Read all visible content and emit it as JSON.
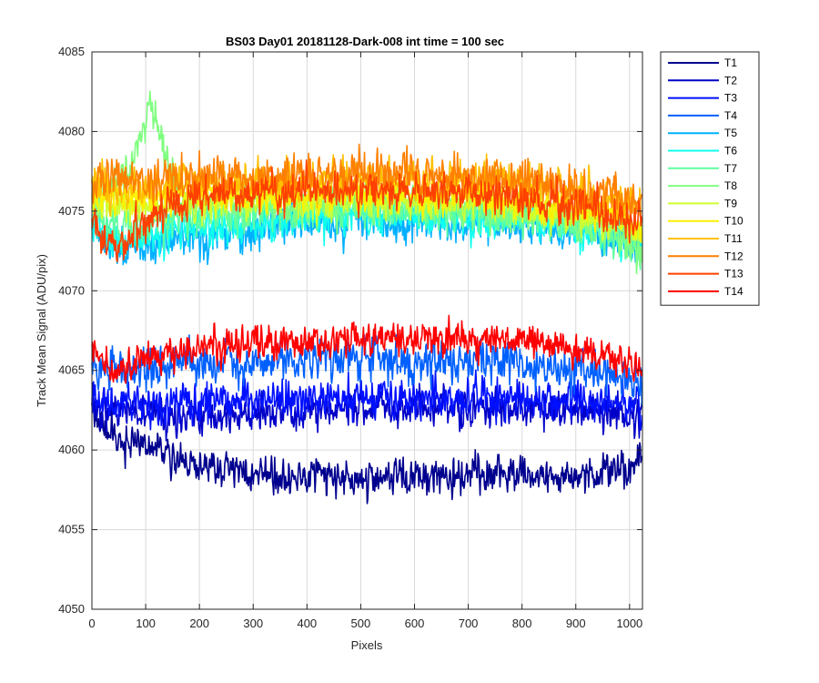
{
  "chart_data": {
    "type": "line",
    "title": "BS03 Day01 20181128-Dark-008 int time = 100 sec",
    "xlabel": "Pixels",
    "ylabel": "Track Mean Signal (ADU/pix)",
    "xlim": [
      0,
      1024
    ],
    "ylim": [
      4050,
      4085
    ],
    "xticks": [
      0,
      100,
      200,
      300,
      400,
      500,
      600,
      700,
      800,
      900,
      1000
    ],
    "yticks": [
      4050,
      4055,
      4060,
      4065,
      4070,
      4075,
      4080,
      4085
    ],
    "grid": true,
    "legend_position": "outside-top-right",
    "x_count": 1024,
    "series": [
      {
        "name": "T1",
        "color": "#00008F",
        "profile": {
          "x": [
            0,
            20,
            60,
            120,
            200,
            300,
            400,
            500,
            600,
            700,
            800,
            900,
            1000,
            1024
          ],
          "y": [
            4062.5,
            4061.5,
            4060.5,
            4060.0,
            4059.0,
            4058.5,
            4058.3,
            4058.2,
            4058.3,
            4058.5,
            4058.4,
            4058.2,
            4058.8,
            4059.5
          ]
        },
        "noise": 1.1
      },
      {
        "name": "T2",
        "color": "#0000C8",
        "profile": {
          "x": [
            0,
            50,
            200,
            500,
            800,
            1000,
            1024
          ],
          "y": [
            4062.5,
            4062.3,
            4062.2,
            4062.6,
            4062.7,
            4062.3,
            4062.0
          ]
        },
        "noise": 1.1
      },
      {
        "name": "T3",
        "color": "#0010FF",
        "profile": {
          "x": [
            0,
            200,
            500,
            800,
            1000,
            1024
          ],
          "y": [
            4063.0,
            4063.0,
            4063.3,
            4063.3,
            4062.8,
            4062.5
          ]
        },
        "noise": 1.2
      },
      {
        "name": "T4",
        "color": "#0060FF",
        "profile": {
          "x": [
            0,
            200,
            500,
            800,
            1000,
            1024
          ],
          "y": [
            4065.0,
            4065.3,
            4065.8,
            4065.5,
            4064.5,
            4064.0
          ]
        },
        "noise": 1.3
      },
      {
        "name": "T5",
        "color": "#00B0FF",
        "profile": {
          "x": [
            0,
            50,
            200,
            500,
            800,
            950,
            1024
          ],
          "y": [
            4074.0,
            4072.5,
            4073.5,
            4074.5,
            4074.0,
            4073.5,
            4073.0
          ]
        },
        "noise": 1.2
      },
      {
        "name": "T6",
        "color": "#10FFEF",
        "profile": {
          "x": [
            0,
            50,
            200,
            500,
            800,
            950,
            1024
          ],
          "y": [
            4074.5,
            4073.0,
            4074.0,
            4075.0,
            4074.5,
            4073.5,
            4073.0
          ]
        },
        "noise": 1.2
      },
      {
        "name": "T7",
        "color": "#60FFA0",
        "profile": {
          "x": [
            0,
            60,
            200,
            500,
            800,
            950,
            1024
          ],
          "y": [
            4075.0,
            4074.0,
            4074.8,
            4075.2,
            4074.8,
            4073.5,
            4072.5
          ]
        },
        "noise": 1.2
      },
      {
        "name": "T8",
        "color": "#80FF80",
        "profile": {
          "x": [
            0,
            60,
            90,
            110,
            130,
            160,
            200,
            500,
            800,
            950,
            1024
          ],
          "y": [
            4075.5,
            4077.0,
            4079.5,
            4081.5,
            4079.5,
            4076.5,
            4075.5,
            4075.5,
            4075.0,
            4074.0,
            4072.5
          ]
        },
        "noise": 1.2
      },
      {
        "name": "T9",
        "color": "#D0FF30",
        "profile": {
          "x": [
            0,
            200,
            500,
            800,
            950,
            1024
          ],
          "y": [
            4075.5,
            4075.5,
            4075.8,
            4075.3,
            4074.5,
            4073.5
          ]
        },
        "noise": 1.1
      },
      {
        "name": "T10",
        "color": "#FFF000",
        "profile": {
          "x": [
            0,
            200,
            500,
            800,
            950,
            1024
          ],
          "y": [
            4076.0,
            4076.0,
            4076.0,
            4075.8,
            4075.0,
            4074.0
          ]
        },
        "noise": 1.1
      },
      {
        "name": "T11",
        "color": "#FFC000",
        "profile": {
          "x": [
            0,
            200,
            500,
            800,
            950,
            1024
          ],
          "y": [
            4076.5,
            4076.8,
            4077.0,
            4076.8,
            4076.0,
            4075.0
          ]
        },
        "noise": 1.3
      },
      {
        "name": "T12",
        "color": "#FF8000",
        "profile": {
          "x": [
            0,
            200,
            500,
            800,
            950,
            1024
          ],
          "y": [
            4077.0,
            4077.0,
            4077.3,
            4077.0,
            4076.3,
            4075.5
          ]
        },
        "noise": 1.3
      },
      {
        "name": "T13",
        "color": "#FF4000",
        "profile": {
          "x": [
            0,
            20,
            50,
            100,
            200,
            500,
            800,
            950,
            1024
          ],
          "y": [
            4075.0,
            4073.5,
            4072.5,
            4074.5,
            4076.0,
            4076.5,
            4076.0,
            4075.0,
            4074.0
          ]
        },
        "noise": 1.2
      },
      {
        "name": "T14",
        "color": "#FF0000",
        "profile": {
          "x": [
            0,
            30,
            200,
            500,
            800,
            950,
            1024
          ],
          "y": [
            4066.5,
            4065.0,
            4066.5,
            4067.0,
            4067.0,
            4066.0,
            4065.0
          ]
        },
        "noise": 1.0
      }
    ]
  }
}
